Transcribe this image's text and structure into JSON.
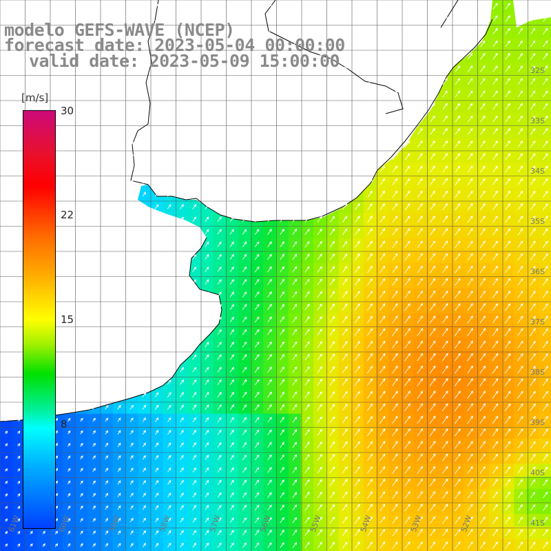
{
  "title": {
    "line1": "modelo GEFS-WAVE (NCEP)",
    "line2": "forecast date: 2023-05-04 00:00:00",
    "line3": "valid date: 2023-05-09 15:00:00"
  },
  "colorbar": {
    "unit": "[m/s]",
    "ticks": [
      "30",
      "22",
      "15",
      "8"
    ],
    "max": 30,
    "min": 0,
    "colors": [
      "#cc0a7a",
      "#ff0000",
      "#ff6a00",
      "#ffff00",
      "#00e000",
      "#00ffff",
      "#0040ff"
    ]
  },
  "map": {
    "lat_labels": [
      "32S",
      "33S",
      "34S",
      "35S",
      "36S",
      "37S",
      "38S",
      "39S",
      "40S",
      "41S"
    ],
    "lon_labels": [
      "61W",
      "60W",
      "59W",
      "58W",
      "57W",
      "56W",
      "55W",
      "54W",
      "53W",
      "52W"
    ],
    "land_color": "#ffffff",
    "grid_color": "#555555",
    "arrow_color": "#ffffff",
    "field_description": "wind speed shaded with direction arrows"
  }
}
